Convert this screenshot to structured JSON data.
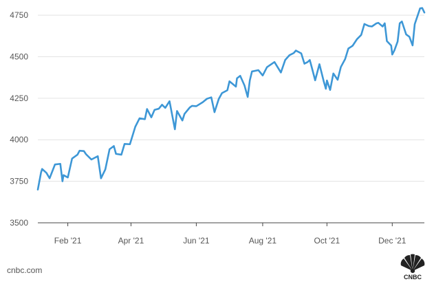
{
  "footer": {
    "source": "cnbc.com",
    "logo_text": "CNBC"
  },
  "colors": {
    "line": "#3d97d6",
    "grid": "#e3e3e3",
    "axis_text": "#555555",
    "axis": "#444444"
  },
  "chart_data": {
    "type": "line",
    "title": "",
    "xlabel": "",
    "ylabel": "",
    "grid": true,
    "ylim": [
      3500,
      4800
    ],
    "xlim": [
      "2021-01-04",
      "2021-12-31"
    ],
    "y_ticks": [
      3500,
      3750,
      4000,
      4250,
      4500,
      4750
    ],
    "x_ticks": [
      {
        "label": "Feb '21",
        "date": "2021-02-01"
      },
      {
        "label": "Apr '21",
        "date": "2021-04-01"
      },
      {
        "label": "Jun '21",
        "date": "2021-06-01"
      },
      {
        "label": "Aug '21",
        "date": "2021-08-02"
      },
      {
        "label": "Oct '21",
        "date": "2021-10-01"
      },
      {
        "label": "Dec '21",
        "date": "2021-12-01"
      }
    ],
    "series": [
      {
        "x": [
          "2021-01-04",
          "2021-01-07",
          "2021-01-08",
          "2021-01-12",
          "2021-01-15",
          "2021-01-20",
          "2021-01-25",
          "2021-01-27",
          "2021-01-28",
          "2021-02-01",
          "2021-02-05",
          "2021-02-10",
          "2021-02-12",
          "2021-02-16",
          "2021-02-18",
          "2021-02-23",
          "2021-03-01",
          "2021-03-04",
          "2021-03-08",
          "2021-03-12",
          "2021-03-16",
          "2021-03-18",
          "2021-03-23",
          "2021-03-26",
          "2021-03-31",
          "2021-04-05",
          "2021-04-09",
          "2021-04-14",
          "2021-04-16",
          "2021-04-20",
          "2021-04-23",
          "2021-04-27",
          "2021-04-30",
          "2021-05-03",
          "2021-05-07",
          "2021-05-12",
          "2021-05-14",
          "2021-05-19",
          "2021-05-21",
          "2021-05-26",
          "2021-05-28",
          "2021-06-01",
          "2021-06-07",
          "2021-06-11",
          "2021-06-15",
          "2021-06-18",
          "2021-06-22",
          "2021-06-25",
          "2021-06-30",
          "2021-07-02",
          "2021-07-08",
          "2021-07-09",
          "2021-07-12",
          "2021-07-16",
          "2021-07-19",
          "2021-07-21",
          "2021-07-23",
          "2021-07-29",
          "2021-08-02",
          "2021-08-06",
          "2021-08-13",
          "2021-08-19",
          "2021-08-23",
          "2021-08-27",
          "2021-08-31",
          "2021-09-02",
          "2021-09-07",
          "2021-09-10",
          "2021-09-13",
          "2021-09-15",
          "2021-09-17",
          "2021-09-20",
          "2021-09-24",
          "2021-09-28",
          "2021-09-30",
          "2021-10-01",
          "2021-10-04",
          "2021-10-07",
          "2021-10-11",
          "2021-10-14",
          "2021-10-18",
          "2021-10-21",
          "2021-10-25",
          "2021-10-29",
          "2021-11-02",
          "2021-11-05",
          "2021-11-09",
          "2021-11-12",
          "2021-11-16",
          "2021-11-18",
          "2021-11-22",
          "2021-11-24",
          "2021-11-26",
          "2021-11-30",
          "2021-12-01",
          "2021-12-03",
          "2021-12-06",
          "2021-12-08",
          "2021-12-10",
          "2021-12-14",
          "2021-12-17",
          "2021-12-20",
          "2021-12-22",
          "2021-12-27",
          "2021-12-29",
          "2021-12-31"
        ],
        "y": [
          3700,
          3803,
          3824,
          3801,
          3768,
          3851,
          3855,
          3750,
          3787,
          3773,
          3887,
          3910,
          3934,
          3932,
          3913,
          3881,
          3901,
          3768,
          3821,
          3943,
          3962,
          3915,
          3910,
          3975,
          3973,
          4078,
          4129,
          4124,
          4185,
          4135,
          4180,
          4187,
          4211,
          4192,
          4232,
          4063,
          4173,
          4116,
          4156,
          4195,
          4204,
          4202,
          4226,
          4247,
          4255,
          4166,
          4246,
          4281,
          4298,
          4352,
          4320,
          4370,
          4385,
          4327,
          4258,
          4358,
          4411,
          4419,
          4387,
          4437,
          4468,
          4405,
          4480,
          4509,
          4522,
          4537,
          4520,
          4458,
          4468,
          4480,
          4432,
          4358,
          4455,
          4352,
          4307,
          4357,
          4300,
          4399,
          4361,
          4438,
          4486,
          4549,
          4566,
          4605,
          4631,
          4697,
          4685,
          4682,
          4700,
          4704,
          4682,
          4701,
          4594,
          4567,
          4513,
          4538,
          4591,
          4701,
          4712,
          4634,
          4620,
          4568,
          4696,
          4791,
          4793,
          4766
        ]
      }
    ]
  }
}
